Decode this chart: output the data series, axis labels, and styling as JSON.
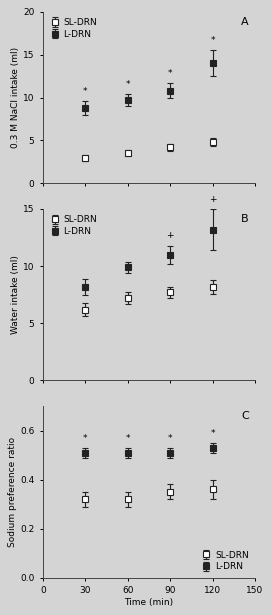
{
  "time": [
    30,
    60,
    90,
    120
  ],
  "panel_A": {
    "SL_mean": [
      3.0,
      3.5,
      4.2,
      4.8
    ],
    "SL_err": [
      0.35,
      0.35,
      0.4,
      0.45
    ],
    "L_mean": [
      8.8,
      9.7,
      10.8,
      14.0
    ],
    "L_err": [
      0.8,
      0.7,
      0.9,
      1.5
    ],
    "ylabel": "0.3 M NaCl intake (ml)",
    "ylim": [
      0,
      20
    ],
    "yticks": [
      0,
      5,
      10,
      15,
      20
    ],
    "label": "A",
    "L_stars": [
      "*",
      "*",
      "*",
      "*"
    ],
    "SL_stars": [
      "",
      "",
      "",
      ""
    ]
  },
  "panel_B": {
    "SL_mean": [
      6.2,
      7.2,
      7.7,
      8.2
    ],
    "SL_err": [
      0.6,
      0.5,
      0.5,
      0.6
    ],
    "L_mean": [
      8.2,
      9.9,
      11.0,
      13.2
    ],
    "L_err": [
      0.7,
      0.5,
      0.8,
      1.8
    ],
    "ylabel": "Water intake (ml)",
    "ylim": [
      0,
      15
    ],
    "yticks": [
      0,
      5,
      10,
      15
    ],
    "label": "B",
    "L_stars": [
      "",
      "",
      "+",
      "+"
    ],
    "SL_stars": [
      "",
      "",
      "",
      ""
    ]
  },
  "panel_C": {
    "SL_mean": [
      0.32,
      0.32,
      0.35,
      0.36
    ],
    "SL_err": [
      0.03,
      0.03,
      0.03,
      0.04
    ],
    "L_mean": [
      0.51,
      0.51,
      0.51,
      0.53
    ],
    "L_err": [
      0.02,
      0.02,
      0.02,
      0.02
    ],
    "ylabel": "Sodium preference ratio",
    "ylim": [
      0.0,
      0.7
    ],
    "yticks": [
      0.0,
      0.2,
      0.4,
      0.6
    ],
    "label": "C",
    "L_stars": [
      "*",
      "*",
      "*",
      "*"
    ],
    "SL_stars": [
      "",
      "",
      "",
      ""
    ]
  },
  "xlabel": "Time (min)",
  "xlim": [
    0,
    150
  ],
  "xticks": [
    0,
    30,
    60,
    90,
    120,
    150
  ],
  "legend_SL": "SL-DRN",
  "legend_L": "L-DRN",
  "bg_color": "#d4d4d4",
  "plot_bg": "#d4d4d4",
  "line_color": "#222222",
  "markersize": 5,
  "linewidth": 0.9,
  "capsize": 2.5,
  "elinewidth": 0.8,
  "tick_fontsize": 6.5,
  "label_fontsize": 6.5,
  "legend_fontsize": 6.5,
  "panel_label_fontsize": 8
}
